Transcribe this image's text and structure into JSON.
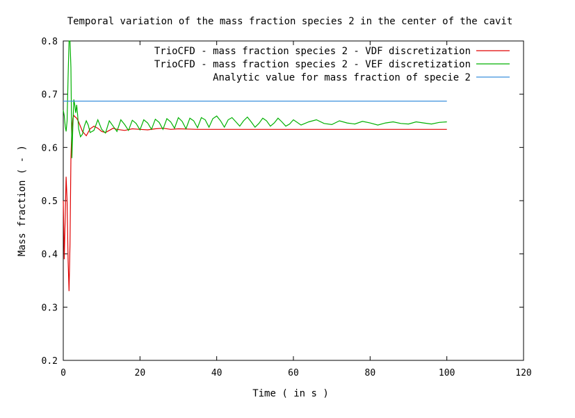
{
  "chart_data": {
    "type": "line",
    "title": "Temporal variation of the mass fraction species 2 in the center of the cavit",
    "xlabel": "Time ( in s )",
    "ylabel": "Mass fraction ( - )",
    "xlim": [
      0,
      120
    ],
    "ylim": [
      0.2,
      0.8
    ],
    "xticks": [
      0,
      20,
      40,
      60,
      80,
      100,
      120
    ],
    "yticks": [
      0.2,
      0.3,
      0.4,
      0.5,
      0.6,
      0.7,
      0.8
    ],
    "x_tick_labels": [
      "0",
      "20",
      "40",
      "60",
      "80",
      "100",
      "120"
    ],
    "y_tick_labels": [
      "0.2",
      "0.3",
      "0.4",
      "0.5",
      "0.6",
      "0.7",
      "0.8"
    ],
    "grid": false,
    "legend_position": "top-right",
    "series": [
      {
        "name": "TrioCFD - mass fraction species 2 - VDF discretization",
        "color": "#e00000",
        "x": [
          0,
          0.25,
          0.5,
          0.75,
          1.0,
          1.25,
          1.5,
          1.75,
          2.0,
          2.25,
          2.5,
          2.75,
          3.0,
          3.5,
          4.0,
          5.0,
          6.0,
          7.0,
          8.0,
          9.0,
          10.0,
          11.0,
          12.0,
          13.0,
          14.0,
          16.0,
          18.0,
          20.0,
          22.0,
          24.0,
          26.0,
          28.0,
          30.0,
          35.0,
          40.0,
          50.0,
          60.0,
          70.0,
          80.0,
          90.0,
          100.0
        ],
        "y": [
          0.5,
          0.39,
          0.47,
          0.545,
          0.5,
          0.39,
          0.33,
          0.42,
          0.58,
          0.635,
          0.655,
          0.66,
          0.658,
          0.655,
          0.648,
          0.63,
          0.622,
          0.635,
          0.64,
          0.636,
          0.63,
          0.628,
          0.632,
          0.636,
          0.634,
          0.632,
          0.635,
          0.634,
          0.633,
          0.635,
          0.636,
          0.634,
          0.635,
          0.634,
          0.634,
          0.634,
          0.634,
          0.634,
          0.634,
          0.634,
          0.634
        ]
      },
      {
        "name": "TrioCFD - mass fraction species 2 - VEF discretization",
        "color": "#00b000",
        "x": [
          0,
          0.25,
          0.5,
          0.75,
          1.0,
          1.25,
          1.5,
          1.75,
          2.0,
          2.25,
          2.5,
          2.75,
          3.0,
          3.25,
          3.5,
          3.75,
          4.0,
          4.5,
          5.0,
          5.5,
          6.0,
          6.5,
          7.0,
          8.0,
          9.0,
          10.0,
          11.0,
          12.0,
          13.0,
          14.0,
          15.0,
          16.0,
          17.0,
          18.0,
          19.0,
          20.0,
          21.0,
          22.0,
          23.0,
          24.0,
          25.0,
          26.0,
          27.0,
          28.0,
          29.0,
          30.0,
          31.0,
          32.0,
          33.0,
          34.0,
          35.0,
          36.0,
          37.0,
          38.0,
          39.0,
          40.0,
          41.0,
          42.0,
          43.0,
          44.0,
          45.0,
          46.0,
          47.0,
          48.0,
          49.0,
          50.0,
          51.0,
          52.0,
          53.0,
          54.0,
          55.0,
          56.0,
          57.0,
          58.0,
          59.0,
          60.0,
          62.0,
          64.0,
          66.0,
          68.0,
          70.0,
          72.0,
          74.0,
          76.0,
          78.0,
          80.0,
          82.0,
          84.0,
          86.0,
          88.0,
          90.0,
          92.0,
          94.0,
          96.0,
          98.0,
          100.0
        ],
        "y": [
          0.67,
          0.66,
          0.64,
          0.63,
          0.65,
          0.73,
          0.8,
          0.8,
          0.75,
          0.58,
          0.64,
          0.69,
          0.68,
          0.665,
          0.68,
          0.66,
          0.635,
          0.62,
          0.625,
          0.64,
          0.65,
          0.642,
          0.628,
          0.632,
          0.652,
          0.634,
          0.627,
          0.65,
          0.64,
          0.63,
          0.652,
          0.643,
          0.632,
          0.651,
          0.645,
          0.633,
          0.652,
          0.646,
          0.634,
          0.653,
          0.647,
          0.634,
          0.654,
          0.648,
          0.636,
          0.656,
          0.649,
          0.635,
          0.655,
          0.65,
          0.637,
          0.656,
          0.652,
          0.638,
          0.654,
          0.659,
          0.65,
          0.638,
          0.652,
          0.656,
          0.648,
          0.64,
          0.65,
          0.657,
          0.648,
          0.638,
          0.645,
          0.655,
          0.65,
          0.64,
          0.646,
          0.655,
          0.648,
          0.64,
          0.644,
          0.652,
          0.642,
          0.648,
          0.652,
          0.645,
          0.643,
          0.65,
          0.646,
          0.644,
          0.649,
          0.646,
          0.642,
          0.646,
          0.648,
          0.645,
          0.644,
          0.648,
          0.646,
          0.644,
          0.647,
          0.648
        ]
      },
      {
        "name": "Analytic value for mass fraction of specie 2",
        "color": "#3a8fdc",
        "x": [
          0,
          100
        ],
        "y": [
          0.687,
          0.687
        ]
      }
    ]
  }
}
